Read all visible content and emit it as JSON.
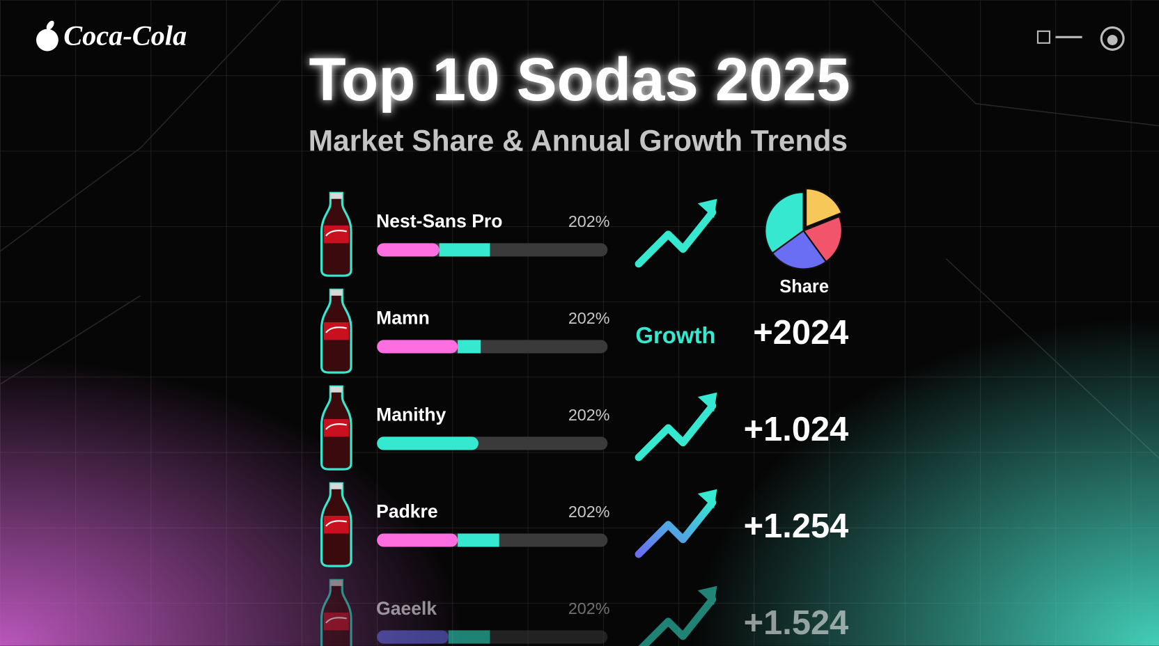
{
  "header": {
    "brand": "Coca-Cola",
    "title": "Top 10 Sodas 2025",
    "subtitle": "Market Share & Annual Growth Trends"
  },
  "share": {
    "label": "Share",
    "slices": [
      {
        "color": "#f7c75a",
        "value": 19
      },
      {
        "color": "#f2556b",
        "value": 21
      },
      {
        "color": "#6a6ef2",
        "value": 25
      },
      {
        "color": "#35e8cf",
        "value": 35
      }
    ]
  },
  "growth_label": "Growth",
  "rows": [
    {
      "name": "Nest-Sans Pro",
      "percent": "202%",
      "bar": [
        {
          "color": "#ff6ee0",
          "value": 27
        },
        {
          "color": "#35e8cf",
          "value": 22
        }
      ],
      "growth": null
    },
    {
      "name": "Mamn",
      "percent": "202%",
      "bar": [
        {
          "color": "#ff6ee0",
          "value": 35
        },
        {
          "color": "#35e8cf",
          "value": 10
        }
      ],
      "growth": "+2024"
    },
    {
      "name": "Manithy",
      "percent": "202%",
      "bar": [
        {
          "color": "#35e8cf",
          "value": 44
        }
      ],
      "growth": "+1.024"
    },
    {
      "name": "Padkre",
      "percent": "202%",
      "bar": [
        {
          "color": "#ff6ee0",
          "value": 35
        },
        {
          "color": "#35e8cf",
          "value": 18
        }
      ],
      "growth": "+1.254"
    },
    {
      "name": "Gaeelk",
      "percent": "202%",
      "bar": [
        {
          "color": "#6a6ef2",
          "value": 31
        },
        {
          "color": "#35e8cf",
          "value": 18
        }
      ],
      "growth": "+1.524"
    }
  ]
}
